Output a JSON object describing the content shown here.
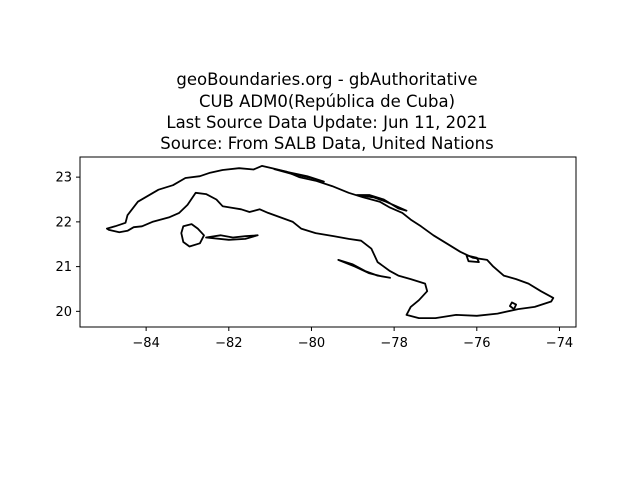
{
  "title_lines": [
    "geoBoundaries.org - gbAuthoritative",
    "CUB ADM0(República de Cuba)",
    "Last Source Data Update: Jun 11, 2021",
    "Source: From SALB Data, United Nations"
  ],
  "chart_data": {
    "type": "map",
    "xlim": [
      -85.6,
      -73.6
    ],
    "ylim": [
      19.65,
      23.45
    ],
    "x_ticks": [
      -84,
      -82,
      -80,
      -78,
      -76,
      -74
    ],
    "x_tick_labels": [
      "−84",
      "−82",
      "−80",
      "−78",
      "−76",
      "−74"
    ],
    "y_ticks": [
      20,
      21,
      22,
      23
    ],
    "y_tick_labels": [
      "20",
      "21",
      "22",
      "23"
    ],
    "grid": false,
    "outline_color": "#000000",
    "main_outline": [
      [
        -84.95,
        21.85
      ],
      [
        -84.75,
        21.9
      ],
      [
        -84.5,
        21.98
      ],
      [
        -84.45,
        22.15
      ],
      [
        -84.2,
        22.45
      ],
      [
        -83.7,
        22.72
      ],
      [
        -83.35,
        22.82
      ],
      [
        -83.05,
        22.98
      ],
      [
        -82.7,
        23.02
      ],
      [
        -82.45,
        23.1
      ],
      [
        -82.15,
        23.16
      ],
      [
        -81.75,
        23.2
      ],
      [
        -81.4,
        23.17
      ],
      [
        -81.2,
        23.25
      ],
      [
        -80.95,
        23.2
      ],
      [
        -80.6,
        23.12
      ],
      [
        -80.3,
        23.0
      ],
      [
        -79.9,
        22.92
      ],
      [
        -79.5,
        22.8
      ],
      [
        -79.1,
        22.65
      ],
      [
        -78.75,
        22.55
      ],
      [
        -78.35,
        22.45
      ],
      [
        -78.1,
        22.32
      ],
      [
        -77.8,
        22.2
      ],
      [
        -77.6,
        22.05
      ],
      [
        -77.35,
        21.9
      ],
      [
        -77.05,
        21.7
      ],
      [
        -76.7,
        21.5
      ],
      [
        -76.4,
        21.33
      ],
      [
        -76.1,
        21.2
      ],
      [
        -75.75,
        21.15
      ],
      [
        -75.6,
        21.0
      ],
      [
        -75.35,
        20.8
      ],
      [
        -75.05,
        20.72
      ],
      [
        -74.75,
        20.62
      ],
      [
        -74.45,
        20.45
      ],
      [
        -74.15,
        20.3
      ],
      [
        -74.2,
        20.22
      ],
      [
        -74.6,
        20.1
      ],
      [
        -75.0,
        20.05
      ],
      [
        -75.5,
        19.95
      ],
      [
        -76.0,
        19.9
      ],
      [
        -76.5,
        19.92
      ],
      [
        -77.0,
        19.85
      ],
      [
        -77.4,
        19.85
      ],
      [
        -77.7,
        19.92
      ],
      [
        -77.6,
        20.1
      ],
      [
        -77.4,
        20.25
      ],
      [
        -77.2,
        20.45
      ],
      [
        -77.25,
        20.62
      ],
      [
        -77.6,
        20.72
      ],
      [
        -77.9,
        20.8
      ],
      [
        -78.1,
        20.9
      ],
      [
        -78.4,
        21.1
      ],
      [
        -78.55,
        21.4
      ],
      [
        -78.8,
        21.58
      ],
      [
        -79.1,
        21.62
      ],
      [
        -79.45,
        21.68
      ],
      [
        -79.9,
        21.75
      ],
      [
        -80.25,
        21.85
      ],
      [
        -80.45,
        22.0
      ],
      [
        -80.75,
        22.1
      ],
      [
        -81.05,
        22.2
      ],
      [
        -81.25,
        22.28
      ],
      [
        -81.5,
        22.22
      ],
      [
        -81.7,
        22.28
      ],
      [
        -81.95,
        22.32
      ],
      [
        -82.15,
        22.35
      ],
      [
        -82.3,
        22.5
      ],
      [
        -82.55,
        22.62
      ],
      [
        -82.8,
        22.65
      ],
      [
        -83.0,
        22.38
      ],
      [
        -83.2,
        22.2
      ],
      [
        -83.45,
        22.1
      ],
      [
        -83.85,
        22.0
      ],
      [
        -84.1,
        21.9
      ],
      [
        -84.3,
        21.88
      ],
      [
        -84.45,
        21.8
      ],
      [
        -84.65,
        21.77
      ],
      [
        -84.9,
        21.82
      ],
      [
        -84.95,
        21.85
      ]
    ],
    "islands": [
      [
        [
          -83.1,
          21.9
        ],
        [
          -82.9,
          21.95
        ],
        [
          -82.75,
          21.85
        ],
        [
          -82.6,
          21.7
        ],
        [
          -82.7,
          21.52
        ],
        [
          -82.95,
          21.45
        ],
        [
          -83.1,
          21.55
        ],
        [
          -83.15,
          21.75
        ],
        [
          -83.1,
          21.9
        ]
      ],
      [
        [
          -82.55,
          21.65
        ],
        [
          -82.2,
          21.7
        ],
        [
          -81.9,
          21.65
        ],
        [
          -81.6,
          21.68
        ],
        [
          -81.3,
          21.7
        ],
        [
          -81.6,
          21.62
        ],
        [
          -82.0,
          21.6
        ],
        [
          -82.55,
          21.65
        ]
      ],
      [
        [
          -79.35,
          21.15
        ],
        [
          -79.0,
          21.05
        ],
        [
          -78.7,
          20.9
        ],
        [
          -78.4,
          20.8
        ],
        [
          -78.1,
          20.75
        ],
        [
          -78.3,
          20.78
        ],
        [
          -78.6,
          20.85
        ],
        [
          -78.95,
          21.0
        ],
        [
          -79.35,
          21.15
        ]
      ],
      [
        [
          -78.9,
          22.6
        ],
        [
          -78.5,
          22.55
        ],
        [
          -78.2,
          22.45
        ],
        [
          -77.95,
          22.35
        ],
        [
          -77.7,
          22.25
        ],
        [
          -77.9,
          22.3
        ],
        [
          -78.25,
          22.5
        ],
        [
          -78.6,
          22.6
        ],
        [
          -78.9,
          22.6
        ]
      ],
      [
        [
          -80.9,
          23.18
        ],
        [
          -80.5,
          23.1
        ],
        [
          -80.1,
          23.02
        ],
        [
          -79.7,
          22.9
        ],
        [
          -80.0,
          22.98
        ],
        [
          -80.5,
          23.08
        ],
        [
          -80.9,
          23.18
        ]
      ],
      [
        [
          -75.15,
          20.2
        ],
        [
          -75.05,
          20.15
        ],
        [
          -75.1,
          20.05
        ],
        [
          -75.2,
          20.12
        ],
        [
          -75.15,
          20.2
        ]
      ],
      [
        [
          -76.25,
          21.25
        ],
        [
          -76.0,
          21.2
        ],
        [
          -75.95,
          21.1
        ],
        [
          -76.2,
          21.12
        ],
        [
          -76.25,
          21.25
        ]
      ]
    ]
  }
}
